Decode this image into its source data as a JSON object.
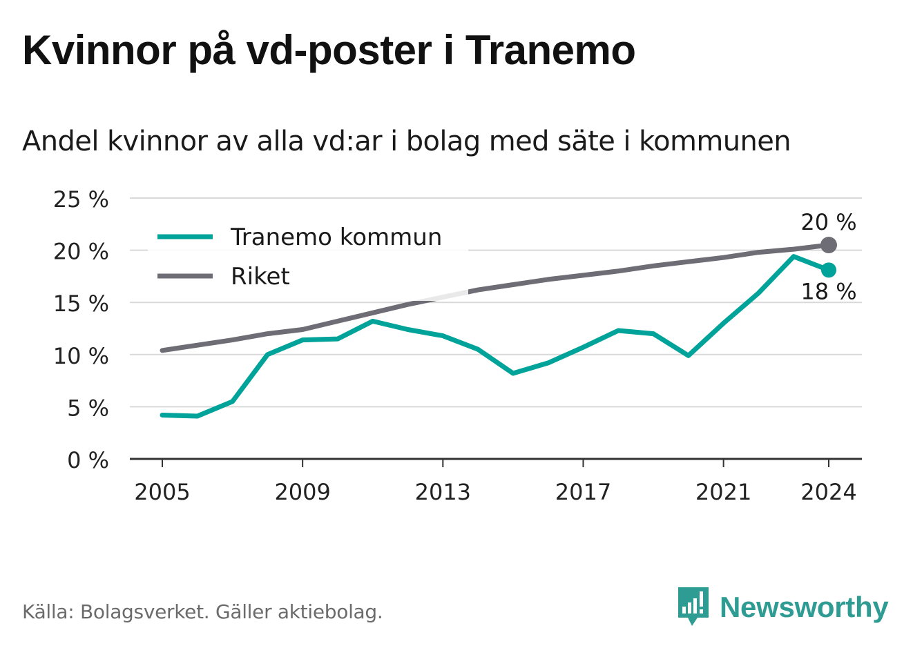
{
  "header": {
    "title": "Kvinnor på vd-poster i Tranemo",
    "subtitle": "Andel kvinnor av alla vd:ar i bolag med säte i kommunen"
  },
  "footer": {
    "source": "Källa: Bolagsverket. Gäller aktiebolag.",
    "brand": "Newsworthy",
    "brand_icon": "newsworthy-logo-icon"
  },
  "colors": {
    "tranemo": "#00a39a",
    "riket": "#6e6d75",
    "grid": "#d9d9d9",
    "axis": "#333333",
    "brand": "#2f9c94"
  },
  "chart_data": {
    "type": "line",
    "x": [
      2005,
      2006,
      2007,
      2008,
      2009,
      2010,
      2011,
      2012,
      2013,
      2014,
      2015,
      2016,
      2017,
      2018,
      2019,
      2020,
      2021,
      2022,
      2023,
      2024
    ],
    "series": [
      {
        "name": "Tranemo kommun",
        "color": "#00a39a",
        "values": [
          4.2,
          4.1,
          5.5,
          10.0,
          11.4,
          11.5,
          13.2,
          12.4,
          11.8,
          10.5,
          8.2,
          9.2,
          10.7,
          12.3,
          12.0,
          9.9,
          13.0,
          15.9,
          19.4,
          18.1
        ],
        "end_label": "18 %"
      },
      {
        "name": "Riket",
        "color": "#6e6d75",
        "values": [
          10.4,
          10.9,
          11.4,
          12.0,
          12.4,
          13.2,
          14.0,
          14.8,
          15.5,
          16.2,
          16.7,
          17.2,
          17.6,
          18.0,
          18.5,
          18.9,
          19.3,
          19.8,
          20.1,
          20.5
        ],
        "end_label": "20 %"
      }
    ],
    "x_ticks": [
      2005,
      2009,
      2013,
      2017,
      2021,
      2024
    ],
    "x_tick_labels": [
      "2005",
      "2009",
      "2013",
      "2017",
      "2021",
      "2024"
    ],
    "y_ticks": [
      0,
      5,
      10,
      15,
      20,
      25
    ],
    "y_tick_labels": [
      "0 %",
      "5 %",
      "10 %",
      "15 %",
      "20 %",
      "25 %"
    ],
    "ylim": [
      0,
      25
    ],
    "xlabel": "",
    "ylabel": "",
    "grid": true,
    "legend": "top-left"
  }
}
